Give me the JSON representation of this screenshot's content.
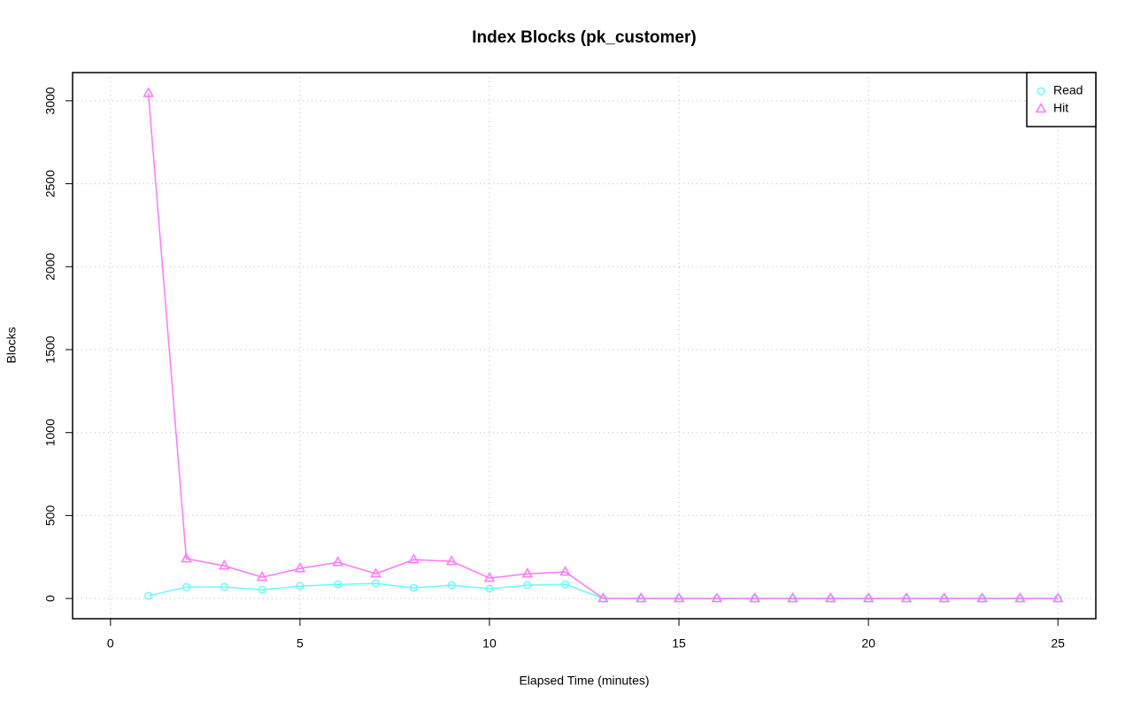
{
  "chart_data": {
    "type": "line",
    "title": "Index Blocks (pk_customer)",
    "xlabel": "Elapsed Time (minutes)",
    "ylabel": "Blocks",
    "x": [
      1,
      2,
      3,
      4,
      5,
      6,
      7,
      8,
      9,
      10,
      11,
      12,
      13,
      14,
      15,
      16,
      17,
      18,
      19,
      20,
      21,
      22,
      23,
      24,
      25
    ],
    "series": [
      {
        "name": "Read",
        "color": "#66ffff",
        "marker": "circle",
        "values": [
          16,
          69,
          69,
          53,
          75,
          85,
          91,
          64,
          80,
          59,
          80,
          85,
          0,
          0,
          0,
          0,
          0,
          0,
          0,
          0,
          0,
          0,
          0,
          0,
          0
        ]
      },
      {
        "name": "Hit",
        "color": "#ff77ff",
        "marker": "triangle",
        "values": [
          3045,
          240,
          197,
          128,
          181,
          218,
          149,
          234,
          224,
          123,
          149,
          160,
          0,
          0,
          0,
          0,
          0,
          0,
          0,
          0,
          0,
          0,
          0,
          0,
          0
        ]
      }
    ],
    "xlim": [
      -1,
      26
    ],
    "ylim": [
      -122,
      3170
    ],
    "xticks": [
      0,
      5,
      10,
      15,
      20,
      25
    ],
    "yticks": [
      0,
      500,
      1000,
      1500,
      2000,
      2500,
      3000
    ],
    "grid": true,
    "legend": "topright"
  }
}
